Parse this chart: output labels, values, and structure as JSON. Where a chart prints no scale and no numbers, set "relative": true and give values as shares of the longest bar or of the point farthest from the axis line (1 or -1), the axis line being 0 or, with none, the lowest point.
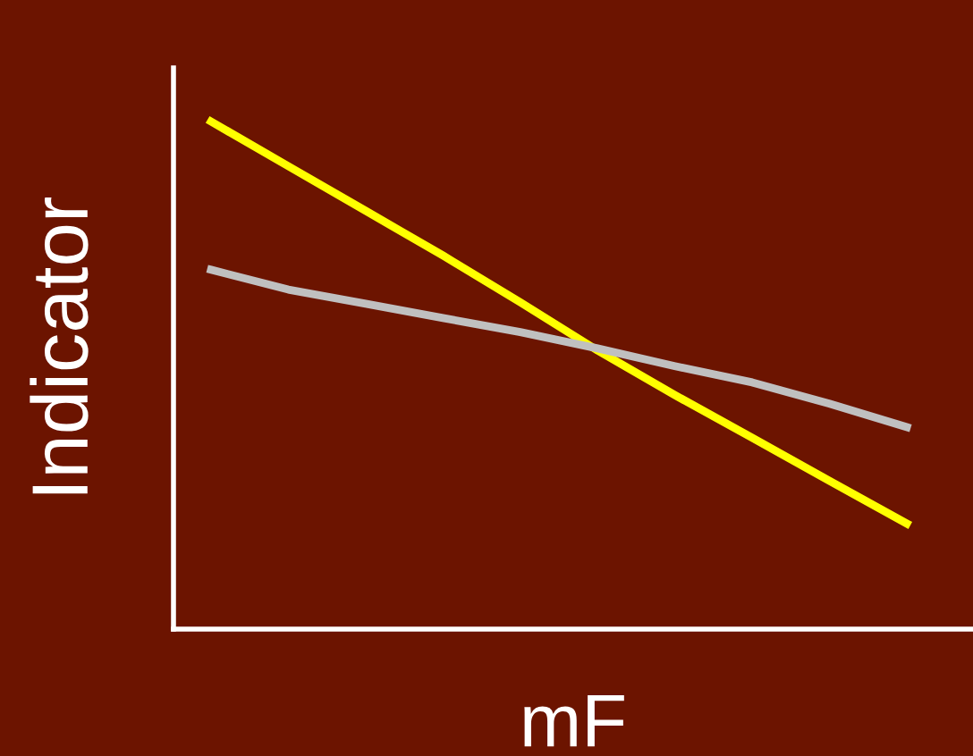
{
  "chart_data": {
    "type": "line",
    "xlabel": "mF",
    "ylabel": "Indicator",
    "relative": true,
    "grid": false,
    "legend": false,
    "marker": "none",
    "line_style": "solid",
    "categories": [
      null,
      null,
      null,
      null,
      null,
      null,
      null,
      null,
      null,
      null
    ],
    "series": [
      {
        "color": "#ffff00",
        "values": [
          1,
          0.912,
          0.824,
          0.736,
          0.644,
          0.549,
          0.461,
          0.377,
          0.292,
          0.208
        ]
      },
      {
        "color": "#c0c0c0",
        "values": [
          0.708,
          0.669,
          0.641,
          0.613,
          0.585,
          0.553,
          0.518,
          0.486,
          0.444,
          0.398
        ]
      }
    ]
  }
}
